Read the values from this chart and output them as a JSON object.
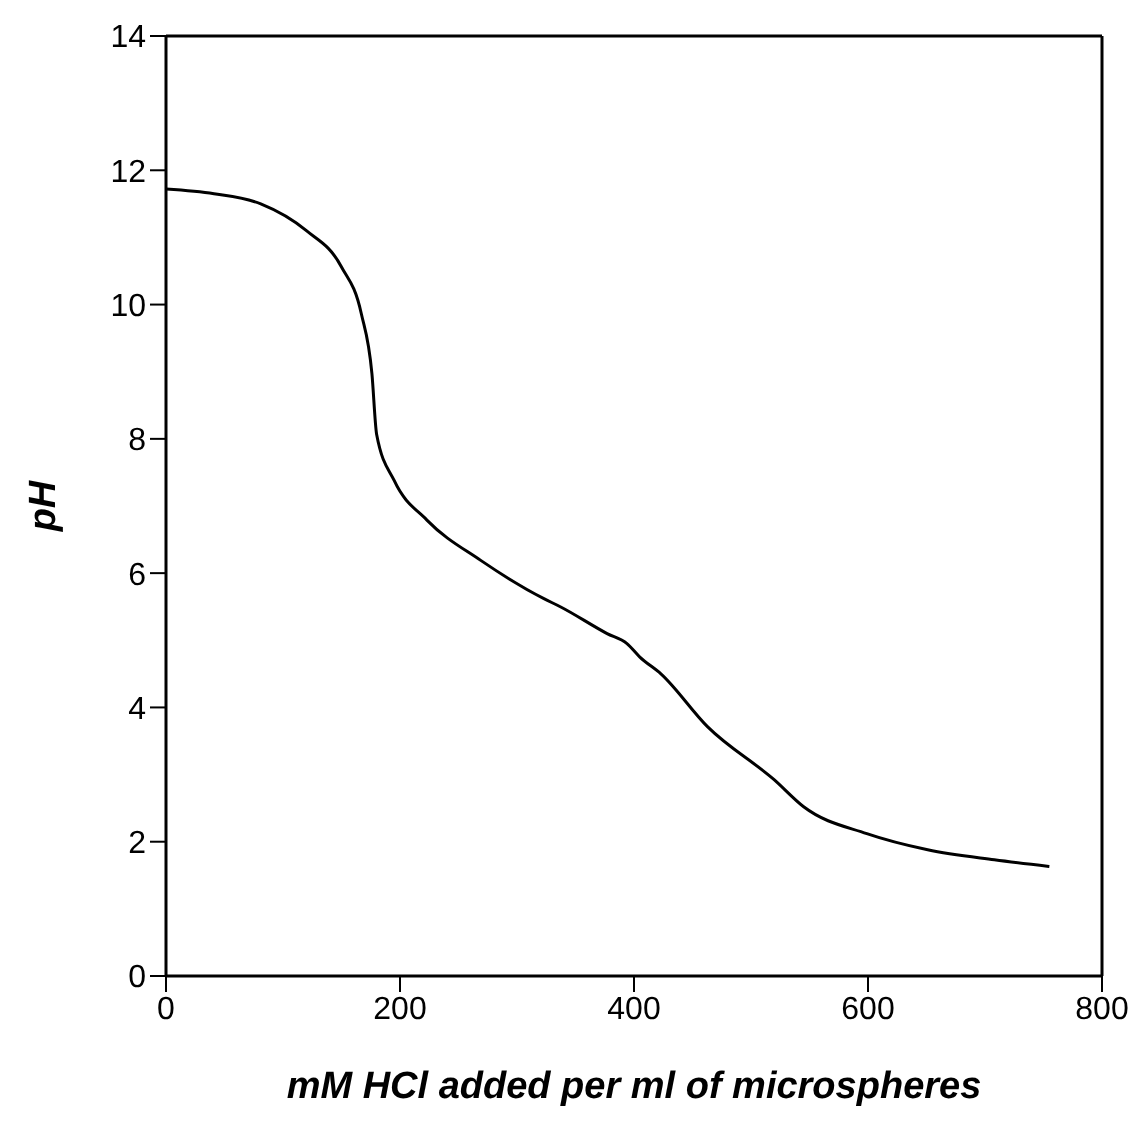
{
  "chart_data": {
    "type": "line",
    "xlabel": "mM HCl added per ml of microspheres",
    "ylabel": "pH",
    "x": [
      0,
      41,
      81,
      120,
      150,
      167,
      176,
      180,
      195,
      223,
      269,
      323,
      337,
      377,
      394,
      405,
      423,
      463,
      520,
      545,
      599,
      651,
      708,
      755
    ],
    "series": [
      {
        "color": "#000000",
        "values": [
          11.72,
          11.65,
          11.5,
          11.1,
          10.56,
          9.86,
          8.97,
          8.07,
          7.38,
          6.79,
          6.19,
          5.62,
          5.5,
          5.1,
          4.95,
          4.75,
          4.5,
          3.71,
          2.92,
          2.52,
          2.12,
          1.88,
          1.73,
          1.63
        ]
      }
    ],
    "xlim": [
      0,
      800
    ],
    "xticks": [
      0,
      200,
      400,
      600,
      800
    ],
    "ylim": [
      0,
      14
    ],
    "yticks": [
      0,
      2,
      4,
      6,
      8,
      10,
      12,
      14
    ],
    "grid": false,
    "marker": "none",
    "line_style": "solid"
  }
}
